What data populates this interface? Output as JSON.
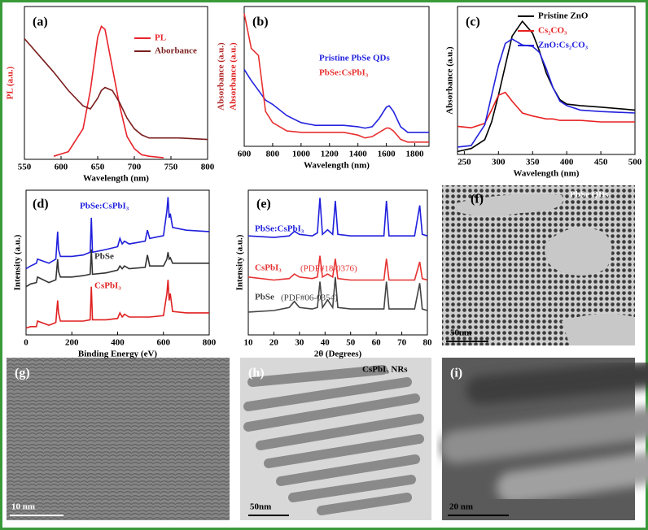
{
  "chart_data": [
    {
      "type": "line",
      "label": "(a)",
      "xlabel": "Wavelength (nm)",
      "ylabel": "PL (a.u.)",
      "x": [
        550,
        570,
        590,
        610,
        630,
        640,
        650,
        655,
        660,
        670,
        680,
        690,
        700,
        710,
        720,
        740,
        760,
        800
      ],
      "xlim": [
        550,
        800
      ],
      "xticks": [
        550,
        600,
        650,
        700,
        750,
        800
      ],
      "ylim": [
        0,
        1
      ],
      "series": [
        {
          "name": "PL",
          "color": "#e8232a",
          "values": [
            null,
            null,
            0.02,
            0.05,
            0.2,
            0.45,
            0.8,
            0.87,
            0.85,
            0.6,
            0.35,
            0.15,
            0.07,
            0.03,
            0.02,
            0.01,
            null,
            null
          ]
        },
        {
          "name": "Aborbance",
          "color": "#7b1e1e",
          "values": [
            0.79,
            0.68,
            0.57,
            0.45,
            0.35,
            0.33,
            0.4,
            0.45,
            0.47,
            0.45,
            0.37,
            0.27,
            0.2,
            0.16,
            0.14,
            0.14,
            0.14,
            0.13
          ]
        }
      ]
    },
    {
      "type": "line",
      "label": "(b)",
      "xlabel": "Wavelength (nm)",
      "ylabel": "Absorbance (a.u.)",
      "ylabel2": "Absorbance (a.u.)",
      "x": [
        600,
        650,
        700,
        750,
        800,
        900,
        1000,
        1100,
        1200,
        1300,
        1400,
        1450,
        1500,
        1550,
        1600,
        1620,
        1650,
        1700,
        1750,
        1800,
        1900
      ],
      "xlim": [
        600,
        1900
      ],
      "xticks": [
        600,
        800,
        1000,
        1200,
        1400,
        1600,
        1800
      ],
      "ylim": [
        0,
        1
      ],
      "series": [
        {
          "name": "Pristine PbSe QDs",
          "color": "#2323e0",
          "values": [
            0.55,
            0.47,
            0.4,
            0.33,
            0.3,
            0.22,
            0.17,
            0.15,
            0.15,
            0.15,
            0.14,
            0.13,
            0.14,
            0.2,
            0.28,
            0.29,
            0.25,
            0.14,
            0.1,
            0.1,
            0.1
          ]
        },
        {
          "name": "PbSe:CsPbI₃",
          "color": "#e83030",
          "values": [
            0.95,
            0.7,
            0.65,
            0.25,
            0.17,
            0.11,
            0.1,
            0.1,
            0.1,
            0.1,
            0.08,
            0.06,
            0.07,
            0.1,
            0.13,
            0.13,
            0.11,
            0.05,
            0.03,
            0.03,
            0.03
          ]
        }
      ]
    },
    {
      "type": "line",
      "label": "(c)",
      "xlabel": "Wavelength (nm)",
      "ylabel": "Absorbance (a.u.)",
      "x": [
        240,
        260,
        280,
        290,
        300,
        310,
        320,
        335,
        350,
        360,
        370,
        380,
        390,
        400,
        420,
        450,
        500
      ],
      "xlim": [
        240,
        500
      ],
      "xticks": [
        250,
        300,
        350,
        400,
        450,
        500
      ],
      "ylim": [
        0,
        1
      ],
      "series": [
        {
          "name": "Pristine ZnO",
          "color": "#000000",
          "values": [
            0.02,
            0.04,
            0.1,
            0.22,
            0.4,
            0.6,
            0.8,
            0.9,
            0.82,
            0.7,
            0.55,
            0.45,
            0.37,
            0.34,
            0.33,
            0.32,
            0.3
          ]
        },
        {
          "name": "Cs₂CO₃",
          "color": "#e82020",
          "values": [
            0.19,
            0.18,
            0.21,
            0.3,
            0.4,
            0.42,
            0.36,
            0.28,
            0.26,
            0.25,
            0.24,
            0.24,
            0.23,
            0.23,
            0.23,
            0.22,
            0.22
          ]
        },
        {
          "name": "ZnO:Cs₂CO₃",
          "color": "#2222dd",
          "values": [
            0.05,
            0.06,
            0.2,
            0.4,
            0.6,
            0.75,
            0.78,
            0.74,
            0.73,
            0.69,
            0.58,
            0.45,
            0.36,
            0.33,
            0.3,
            0.29,
            0.28
          ]
        }
      ]
    },
    {
      "type": "line",
      "label": "(d)",
      "xlabel": "Binding Energy (eV)",
      "ylabel": "Intensity (a.u.)",
      "x": [
        0,
        20,
        45,
        50,
        100,
        130,
        138,
        142,
        150,
        200,
        250,
        280,
        285,
        290,
        350,
        400,
        410,
        420,
        430,
        450,
        520,
        530,
        540,
        600,
        615,
        620,
        625,
        630,
        640,
        700,
        800
      ],
      "xlim": [
        0,
        800
      ],
      "xticks": [
        0,
        200,
        400,
        600,
        800
      ],
      "ylim": [
        0,
        1.05
      ],
      "series": [
        {
          "name": "PbSe:CsPbI₃",
          "color": "#1f1fdd",
          "values": [
            0.48,
            0.5,
            0.52,
            0.55,
            0.52,
            0.55,
            0.75,
            0.62,
            0.57,
            0.57,
            0.58,
            0.6,
            0.85,
            0.6,
            0.62,
            0.64,
            0.7,
            0.66,
            0.68,
            0.66,
            0.68,
            0.76,
            0.7,
            0.72,
            0.9,
            1.0,
            0.85,
            0.88,
            0.78,
            0.76,
            0.75
          ]
        },
        {
          "name": "PbSe",
          "color": "#333333",
          "values": [
            0.35,
            0.37,
            0.38,
            0.42,
            0.38,
            0.4,
            0.55,
            0.46,
            0.42,
            0.42,
            0.43,
            0.44,
            0.62,
            0.44,
            0.45,
            0.47,
            0.5,
            0.48,
            0.5,
            0.48,
            0.49,
            0.58,
            0.5,
            0.5,
            0.55,
            0.6,
            0.55,
            0.56,
            0.52,
            0.52,
            0.52
          ]
        },
        {
          "name": "CsPbI₃",
          "color": "#e02020",
          "values": [
            0.05,
            0.06,
            0.06,
            0.1,
            0.07,
            0.09,
            0.25,
            0.16,
            0.1,
            0.1,
            0.1,
            0.11,
            0.35,
            0.11,
            0.11,
            0.12,
            0.16,
            0.13,
            0.15,
            0.13,
            0.13,
            0.13,
            0.13,
            0.14,
            0.3,
            0.4,
            0.25,
            0.3,
            0.17,
            0.16,
            0.16
          ]
        }
      ]
    },
    {
      "type": "line",
      "label": "(e)",
      "xlabel": "2θ (Degrees)",
      "ylabel": "Intensity (a.u.)",
      "x": [
        10,
        20,
        26,
        28,
        30,
        35,
        37,
        38,
        39,
        41,
        43,
        44,
        45,
        50,
        60,
        63,
        64,
        65,
        70,
        75,
        77,
        78,
        80
      ],
      "xlim": [
        10,
        80
      ],
      "xticks": [
        10,
        20,
        30,
        40,
        50,
        60,
        70,
        80
      ],
      "ylim": [
        0.1,
        1.05
      ],
      "series": [
        {
          "name": "PbSe:CsPbI₃",
          "color": "#1f1fdd",
          "values": [
            0.75,
            0.74,
            0.75,
            0.78,
            0.76,
            0.75,
            0.77,
            1.0,
            0.76,
            0.79,
            0.76,
            0.98,
            0.76,
            0.75,
            0.75,
            0.75,
            0.98,
            0.75,
            0.75,
            0.75,
            0.95,
            0.76,
            0.75
          ]
        },
        {
          "name": "CsPbI₃",
          "note": "(PDF#18-0376)",
          "color": "#e63232",
          "values": [
            0.48,
            0.46,
            0.47,
            0.5,
            0.48,
            0.47,
            0.48,
            0.62,
            0.48,
            0.5,
            0.48,
            0.6,
            0.47,
            0.46,
            0.46,
            0.46,
            0.6,
            0.46,
            0.46,
            0.46,
            0.58,
            0.47,
            0.46
          ]
        },
        {
          "name": "PbSe",
          "note": "(PDF#06-0354)",
          "color": "#444444",
          "values": [
            0.25,
            0.26,
            0.28,
            0.32,
            0.28,
            0.27,
            0.28,
            0.45,
            0.28,
            0.33,
            0.28,
            0.48,
            0.28,
            0.27,
            0.27,
            0.27,
            0.45,
            0.27,
            0.27,
            0.27,
            0.44,
            0.27,
            0.26
          ]
        }
      ]
    }
  ],
  "images": [
    {
      "label": "(f)",
      "caption": "PbSe QDs",
      "scale_bar": "50nm"
    },
    {
      "label": "(g)",
      "scale_bar": "10 nm"
    },
    {
      "label": "(h)",
      "caption": "CsPbI₃ NRs",
      "scale_bar": "50nm"
    },
    {
      "label": "(i)",
      "scale_bar": "20 nm"
    }
  ]
}
